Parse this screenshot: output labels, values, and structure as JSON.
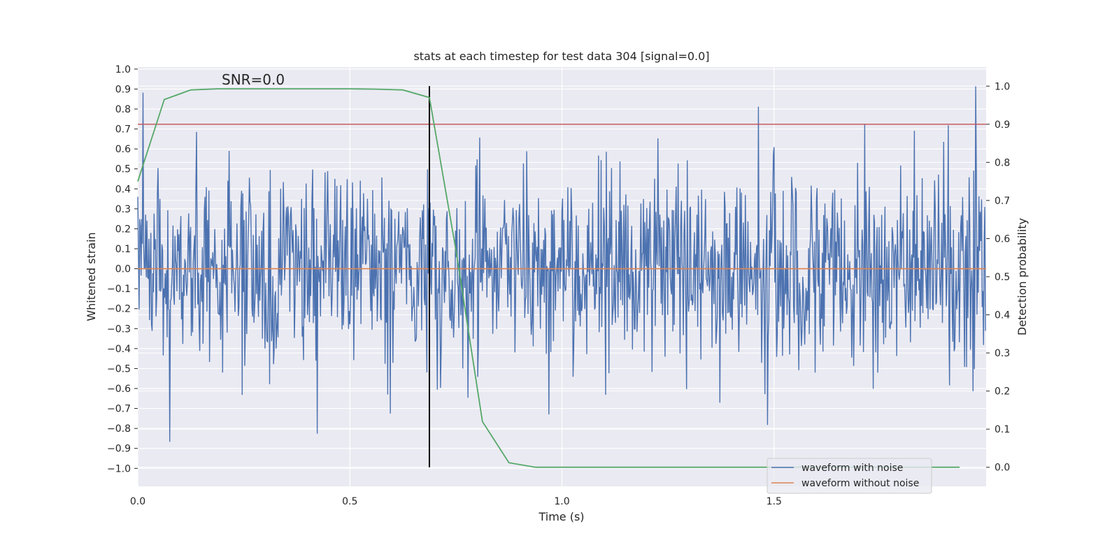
{
  "chart_data": {
    "type": "line",
    "title": "stats at each timestep for test data 304 [signal=0.0]",
    "xlabel": "Time (s)",
    "ylabel": "Whitened strain",
    "y2label": "Detection probability",
    "xlim": [
      0.0,
      2.0
    ],
    "ylim": [
      -1.09,
      1.01
    ],
    "y2lim": [
      -0.05,
      1.05
    ],
    "x_ticks": [
      0.0,
      0.5,
      1.0,
      1.5
    ],
    "x_tick_labels": [
      "0.0",
      "0.5",
      "1.0",
      "1.5"
    ],
    "y_ticks": [
      1.0,
      0.9,
      0.8,
      0.7,
      0.6,
      0.5,
      0.4,
      0.3,
      0.2,
      0.1,
      0.0,
      -0.1,
      -0.2,
      -0.3,
      -0.4,
      -0.5,
      -0.6,
      -0.7,
      -0.8,
      -0.9,
      -1.0
    ],
    "y_tick_labels": [
      "1.0",
      "0.9",
      "0.8",
      "0.7",
      "0.6",
      "0.5",
      "0.4",
      "0.3",
      "0.2",
      "0.1",
      "0.0",
      "−0.1",
      "−0.2",
      "−0.3",
      "−0.4",
      "−0.5",
      "−0.6",
      "−0.7",
      "−0.8",
      "−0.9",
      "−1.0"
    ],
    "y2_ticks": [
      1.0,
      0.9,
      0.8,
      0.7,
      0.6,
      0.5,
      0.4,
      0.3,
      0.2,
      0.1,
      0.0
    ],
    "y2_tick_labels": [
      "1.0",
      "0.9",
      "0.8",
      "0.7",
      "0.6",
      "0.5",
      "0.4",
      "0.3",
      "0.2",
      "0.1",
      "0.0"
    ],
    "grid": true,
    "legend_position": "lower-right",
    "noise": {
      "name": "waveform with noise",
      "color": "#4c72b0",
      "n_samples": 1300,
      "seed": 304,
      "std": 0.24,
      "clip": [
        -1.0,
        0.92
      ]
    },
    "clean": {
      "name": "waveform without noise",
      "color": "#dd8452",
      "value": 0.0
    },
    "threshold": {
      "value": 0.9,
      "axis": "right",
      "color": "#c44e52"
    },
    "detection": {
      "name": "Detection probability",
      "color": "#55a868",
      "x": [
        0.0,
        0.0625,
        0.125,
        0.1875,
        0.25,
        0.3125,
        0.375,
        0.4375,
        0.5,
        0.5625,
        0.625,
        0.6875,
        0.75,
        0.8125,
        0.875,
        0.9375,
        1.0,
        1.0625,
        1.125,
        1.1875,
        1.25,
        1.3125,
        1.375,
        1.4375,
        1.5,
        1.5625,
        1.625,
        1.6875,
        1.75,
        1.8125,
        1.875,
        1.9375
      ],
      "values": [
        0.75,
        0.965,
        0.99,
        0.993,
        0.993,
        0.993,
        0.993,
        0.993,
        0.993,
        0.992,
        0.99,
        0.97,
        0.57,
        0.12,
        0.012,
        0.0,
        0.0,
        0.0,
        0.0,
        0.0,
        0.0,
        0.0,
        0.0,
        0.0,
        0.0,
        0.0,
        0.0,
        0.0,
        0.0,
        0.0,
        0.0,
        0.0
      ]
    },
    "vline": {
      "x": 0.6875,
      "color": "#000000"
    },
    "annotation": {
      "text": "SNR=0.0"
    }
  }
}
